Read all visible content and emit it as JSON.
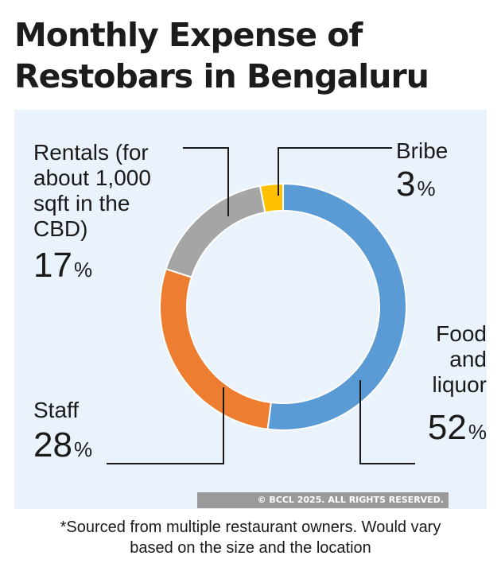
{
  "title_line1": "Monthly Expense of",
  "title_line2": "Restobars in Bengaluru",
  "chart_data": {
    "type": "pie",
    "variant": "donut",
    "title": "Monthly Expense of Restobars in Bengaluru",
    "categories": [
      "Food and liquor",
      "Staff",
      "Rentals (for about 1,000 sqft in the CBD)",
      "Bribe"
    ],
    "values": [
      52,
      28,
      17,
      3
    ],
    "unit": "%",
    "colors": [
      "#5b9bd5",
      "#ed7d31",
      "#a5a5a5",
      "#ffc000"
    ]
  },
  "labels": {
    "rentals": {
      "line1": "Rentals (for",
      "line2": "about 1,000",
      "line3": "sqft in the",
      "line4": "CBD)",
      "value": "17",
      "pct": "%"
    },
    "bribe": {
      "line1": "Bribe",
      "value": "3",
      "pct": "%"
    },
    "food": {
      "line1": "Food",
      "line2": "and",
      "line3": "liquor",
      "value": "52",
      "pct": "%"
    },
    "staff": {
      "line1": "Staff",
      "value": "28",
      "pct": "%"
    }
  },
  "copyright": "© BCCL 2025. ALL RIGHTS RESERVED.",
  "footnote_line1": "*Sourced from multiple restaurant owners. Would vary",
  "footnote_line2": "based on the size and the location"
}
